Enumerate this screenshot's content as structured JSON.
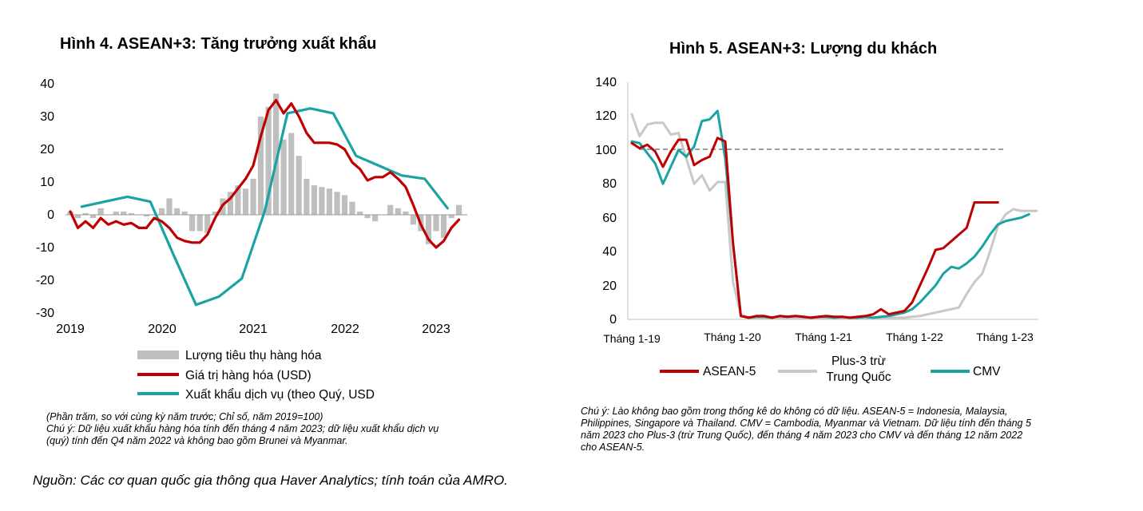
{
  "figures": [
    {
      "title": "Hình 4. ASEAN+3: Tăng trưởng xuất khẩu",
      "note_lines": [
        "(Phần trăm, so với cùng kỳ năm trước; Chỉ số, năm 2019=100)",
        "Chú ý: Dữ liệu xuất khẩu hàng hóa tính đến tháng 4 năm 2023; dữ liệu xuất khẩu dịch vụ",
        "(quý) tính đến Q4 năm 2022 và không bao gồm Brunei và Myanmar."
      ]
    },
    {
      "title": "Hình 5. ASEAN+3: Lượng du khách",
      "note_lines": [
        "Chú ý: Lào không bao gồm trong thống kê do không có dữ liệu. ASEAN-5 = Indonesia, Malaysia,",
        "Philippines, Singapore và Thailand. CMV = Cambodia, Myanmar và Vietnam. Dữ liệu tính đến tháng 5",
        "năm 2023 cho Plus-3 (trừ Trung Quốc), đến tháng 4 năm 2023 cho CMV và đến tháng 12 năm 2022",
        "cho ASEAN-5."
      ]
    }
  ],
  "source": "Nguồn: Các cơ quan quốc gia thông qua Haver Analytics; tính toán của AMRO.",
  "chart_data": [
    {
      "type": "bar+line",
      "title": "Hình 4. ASEAN+3: Tăng trưởng xuất khẩu",
      "x_range": [
        2019.0,
        2023.5
      ],
      "ylim": [
        -30,
        40
      ],
      "y_ticks": [
        "40",
        "30",
        "20",
        "10",
        "0",
        "-10",
        "-20",
        "-30"
      ],
      "y_tick_values": [
        40,
        30,
        20,
        10,
        0,
        -10,
        -20,
        -30
      ],
      "x_ticks": [
        "2019",
        "2020",
        "2021",
        "2022",
        "2023"
      ],
      "x_tick_values": [
        2019,
        2020,
        2021,
        2022,
        2023
      ],
      "grid": false,
      "legend_position": "bottom",
      "series": [
        {
          "name": "Lượng tiêu thụ hàng hóa",
          "type": "bar",
          "color": "#bfbfbf",
          "x": [
            2019.0,
            2019.083,
            2019.167,
            2019.25,
            2019.333,
            2019.417,
            2019.5,
            2019.583,
            2019.667,
            2019.75,
            2019.833,
            2019.917,
            2020.0,
            2020.083,
            2020.167,
            2020.25,
            2020.333,
            2020.417,
            2020.5,
            2020.583,
            2020.667,
            2020.75,
            2020.833,
            2020.917,
            2021.0,
            2021.083,
            2021.167,
            2021.25,
            2021.333,
            2021.417,
            2021.5,
            2021.583,
            2021.667,
            2021.75,
            2021.833,
            2021.917,
            2022.0,
            2022.083,
            2022.167,
            2022.25,
            2022.333,
            2022.417,
            2022.5,
            2022.583,
            2022.667,
            2022.75,
            2022.833,
            2022.917,
            2023.0,
            2023.083,
            2023.167,
            2023.25
          ],
          "values": [
            1,
            -1,
            0.5,
            -1,
            2,
            0,
            1,
            1,
            0.5,
            0,
            -0.5,
            0,
            2,
            5,
            2,
            1,
            -5,
            -5,
            -5.5,
            1,
            5,
            7,
            9,
            8,
            11,
            30,
            33,
            37,
            23,
            25,
            18,
            11,
            9,
            8.5,
            8,
            7,
            6,
            4,
            1,
            -1,
            -2,
            0,
            3,
            2,
            1,
            -3,
            -5,
            -9,
            -5,
            -7,
            -1,
            3
          ]
        },
        {
          "name": "Giá trị hàng hóa (USD)",
          "type": "line",
          "color": "#c00000",
          "x": [
            2019.0,
            2019.083,
            2019.167,
            2019.25,
            2019.333,
            2019.417,
            2019.5,
            2019.583,
            2019.667,
            2019.75,
            2019.833,
            2019.917,
            2020.0,
            2020.083,
            2020.167,
            2020.25,
            2020.333,
            2020.417,
            2020.5,
            2020.583,
            2020.667,
            2020.75,
            2020.833,
            2020.917,
            2021.0,
            2021.083,
            2021.167,
            2021.25,
            2021.333,
            2021.417,
            2021.5,
            2021.583,
            2021.667,
            2021.75,
            2021.833,
            2021.917,
            2022.0,
            2022.083,
            2022.167,
            2022.25,
            2022.333,
            2022.417,
            2022.5,
            2022.583,
            2022.667,
            2022.75,
            2022.833,
            2022.917,
            2023.0,
            2023.083,
            2023.167,
            2023.25
          ],
          "values": [
            1,
            -4,
            -2,
            -4,
            -1,
            -3,
            -2,
            -3,
            -2.5,
            -4,
            -4,
            -1,
            -2,
            -4,
            -7,
            -8,
            -8.5,
            -8.5,
            -6,
            -1,
            3,
            5,
            8,
            11,
            15,
            24,
            32,
            35,
            31,
            34,
            30,
            25,
            22,
            22,
            22,
            21.5,
            20,
            16,
            14,
            10.5,
            11.5,
            11.5,
            13,
            11,
            8.5,
            3,
            -3,
            -7.5,
            -10,
            -8,
            -4,
            -1.5
          ]
        },
        {
          "name": "Xuất khẩu dịch vụ (theo Quý, USD",
          "type": "line",
          "color": "#1ba3a3",
          "x": [
            2019.125,
            2019.375,
            2019.625,
            2019.875,
            2020.125,
            2020.375,
            2020.625,
            2020.875,
            2021.125,
            2021.375,
            2021.625,
            2021.875,
            2022.125,
            2022.375,
            2022.625,
            2022.875,
            2023.125
          ],
          "values": [
            2.5,
            4,
            5.5,
            4,
            -12,
            -27.5,
            -25,
            -19.5,
            1,
            31,
            32.5,
            31,
            18,
            15,
            12,
            11,
            2
          ]
        }
      ]
    },
    {
      "type": "line",
      "title": "Hình 5. ASEAN+3: Lượng du khách",
      "x_range": [
        2019.0,
        2023.5
      ],
      "ylim": [
        0,
        140
      ],
      "y_ticks": [
        "140",
        "120",
        "100",
        "80",
        "60",
        "40",
        "20",
        "0"
      ],
      "y_tick_values": [
        140,
        120,
        100,
        80,
        60,
        40,
        20,
        0
      ],
      "x_ticks": [
        "Tháng 1-19",
        "Tháng 1-20",
        "Tháng 1-21",
        "Tháng 1-22",
        "Tháng 1-23"
      ],
      "x_tick_values": [
        2019,
        2020,
        2021,
        2022,
        2023
      ],
      "reference_line": 100,
      "grid": false,
      "legend_position": "bottom",
      "series": [
        {
          "name": "ASEAN-5",
          "color": "#c00000",
          "x": [
            2019.0,
            2019.083,
            2019.167,
            2019.25,
            2019.333,
            2019.417,
            2019.5,
            2019.583,
            2019.667,
            2019.75,
            2019.833,
            2019.917,
            2020.0,
            2020.083,
            2020.167,
            2020.25,
            2020.333,
            2020.417,
            2020.5,
            2020.583,
            2020.667,
            2020.75,
            2020.833,
            2020.917,
            2021.0,
            2021.083,
            2021.167,
            2021.25,
            2021.333,
            2021.417,
            2021.5,
            2021.583,
            2021.667,
            2021.75,
            2021.833,
            2021.917,
            2022.0,
            2022.083,
            2022.167,
            2022.25,
            2022.333,
            2022.417,
            2022.5,
            2022.583,
            2022.667,
            2022.75,
            2022.833,
            2022.917
          ],
          "values": [
            104,
            101,
            103,
            99,
            90,
            99,
            106,
            106,
            91,
            94,
            96,
            107,
            105,
            45,
            2,
            1,
            2,
            2,
            1,
            2,
            1.5,
            2,
            1.5,
            1,
            1.5,
            2,
            1.5,
            1.5,
            1,
            1.5,
            2,
            3,
            6,
            3,
            4,
            5,
            10,
            20,
            30,
            41,
            42,
            46,
            50,
            54,
            69,
            69,
            69,
            69
          ]
        },
        {
          "name": "Plus-3 trừ Trung Quốc",
          "color": "#c8c8c8",
          "x": [
            2019.0,
            2019.083,
            2019.167,
            2019.25,
            2019.333,
            2019.417,
            2019.5,
            2019.583,
            2019.667,
            2019.75,
            2019.833,
            2019.917,
            2020.0,
            2020.083,
            2020.167,
            2020.25,
            2020.333,
            2020.417,
            2020.5,
            2020.583,
            2020.667,
            2020.75,
            2020.833,
            2020.917,
            2021.0,
            2021.083,
            2021.167,
            2021.25,
            2021.333,
            2021.417,
            2021.5,
            2021.583,
            2021.667,
            2021.75,
            2021.833,
            2021.917,
            2022.0,
            2022.083,
            2022.167,
            2022.25,
            2022.333,
            2022.417,
            2022.5,
            2022.583,
            2022.667,
            2022.75,
            2022.833,
            2022.917,
            2023.0,
            2023.083,
            2023.167,
            2023.25,
            2023.333
          ],
          "values": [
            121,
            108,
            115,
            116,
            116,
            109,
            110,
            95,
            80,
            85,
            76,
            81,
            81,
            22,
            3,
            1,
            1,
            1,
            1,
            1,
            1,
            1,
            1,
            1,
            1,
            1,
            1,
            1,
            1,
            1,
            1,
            1,
            1,
            1,
            1,
            1,
            1.5,
            2,
            3,
            4,
            5,
            6,
            7,
            15,
            22,
            27,
            40,
            55,
            62,
            65,
            64,
            64,
            64
          ]
        },
        {
          "name": "CMV",
          "color": "#1ba3a3",
          "x": [
            2019.0,
            2019.083,
            2019.167,
            2019.25,
            2019.333,
            2019.417,
            2019.5,
            2019.583,
            2019.667,
            2019.75,
            2019.833,
            2019.917,
            2020.0,
            2020.083,
            2020.167,
            2020.25,
            2020.333,
            2020.417,
            2020.5,
            2020.583,
            2020.667,
            2020.75,
            2020.833,
            2020.917,
            2021.0,
            2021.083,
            2021.167,
            2021.25,
            2021.333,
            2021.417,
            2021.5,
            2021.583,
            2021.667,
            2021.75,
            2021.833,
            2021.917,
            2022.0,
            2022.083,
            2022.167,
            2022.25,
            2022.333,
            2022.417,
            2022.5,
            2022.583,
            2022.667,
            2022.75,
            2022.833,
            2022.917,
            2023.0,
            2023.083,
            2023.167,
            2023.25
          ],
          "values": [
            105,
            104,
            98,
            92,
            80,
            90,
            100,
            96,
            102,
            117,
            118,
            123,
            95,
            45,
            2,
            1,
            1.5,
            1.5,
            1,
            2,
            1.5,
            2,
            1.5,
            1,
            1.5,
            1.5,
            1,
            1.5,
            1,
            1,
            1.5,
            1,
            1.5,
            2,
            3,
            4,
            6,
            10,
            15,
            20,
            27,
            31,
            30,
            33,
            37,
            43,
            50,
            56,
            58,
            59,
            60,
            62
          ]
        }
      ]
    }
  ]
}
